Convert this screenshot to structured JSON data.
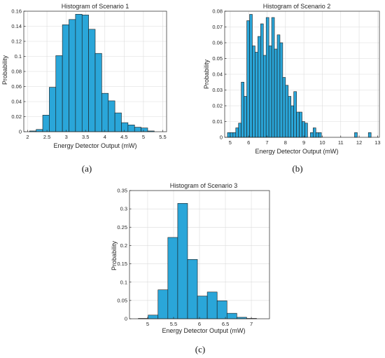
{
  "colors": {
    "bar": "#2aa6d9",
    "edge": "#1a1a1a",
    "grid": "#dcdcdc"
  },
  "chart_data": [
    {
      "type": "bar",
      "panel_label": "(a)",
      "title": "Histogram of Scenario 1",
      "xlabel": "Energy Detector Output (mW)",
      "ylabel": "Probability",
      "xlim": [
        1.9,
        5.6
      ],
      "ylim": [
        0,
        0.16
      ],
      "xticks": [
        2,
        2.5,
        3,
        3.5,
        4,
        4.5,
        5,
        5.5
      ],
      "xtick_labels": [
        "2",
        "2.5",
        "3",
        "3.5",
        "4",
        "4.5",
        "5",
        "5.5"
      ],
      "yticks": [
        0,
        0.02,
        0.04,
        0.06,
        0.08,
        0.1,
        0.12,
        0.14,
        0.16
      ],
      "ytick_labels": [
        "0",
        "0.02",
        "0.04",
        "0.06",
        "0.08",
        "0.1",
        "0.12",
        "0.14",
        "0.16"
      ],
      "grid": true,
      "bins": [
        {
          "x0": 2.05,
          "x1": 2.22,
          "value": 0.001
        },
        {
          "x0": 2.22,
          "x1": 2.39,
          "value": 0.003
        },
        {
          "x0": 2.39,
          "x1": 2.56,
          "value": 0.022
        },
        {
          "x0": 2.56,
          "x1": 2.73,
          "value": 0.059
        },
        {
          "x0": 2.73,
          "x1": 2.9,
          "value": 0.101
        },
        {
          "x0": 2.9,
          "x1": 3.07,
          "value": 0.142
        },
        {
          "x0": 3.07,
          "x1": 3.24,
          "value": 0.149
        },
        {
          "x0": 3.24,
          "x1": 3.41,
          "value": 0.156
        },
        {
          "x0": 3.41,
          "x1": 3.58,
          "value": 0.155
        },
        {
          "x0": 3.58,
          "x1": 3.75,
          "value": 0.136
        },
        {
          "x0": 3.75,
          "x1": 3.92,
          "value": 0.104
        },
        {
          "x0": 3.92,
          "x1": 4.09,
          "value": 0.051
        },
        {
          "x0": 4.09,
          "x1": 4.26,
          "value": 0.041
        },
        {
          "x0": 4.26,
          "x1": 4.43,
          "value": 0.025
        },
        {
          "x0": 4.43,
          "x1": 4.6,
          "value": 0.012
        },
        {
          "x0": 4.6,
          "x1": 4.77,
          "value": 0.009
        },
        {
          "x0": 4.77,
          "x1": 4.94,
          "value": 0.006
        },
        {
          "x0": 4.94,
          "x1": 5.11,
          "value": 0.005
        },
        {
          "x0": 5.11,
          "x1": 5.28,
          "value": 0.001
        }
      ]
    },
    {
      "type": "bar",
      "panel_label": "(b)",
      "title": "Histogram of Scenario 2",
      "xlabel": "Energy Detector Output (mW)",
      "ylabel": "Probability",
      "xlim": [
        4.7,
        13.1
      ],
      "ylim": [
        0,
        0.08
      ],
      "xticks": [
        5,
        6,
        7,
        8,
        9,
        10,
        11,
        12,
        13
      ],
      "xtick_labels": [
        "5",
        "6",
        "7",
        "8",
        "9",
        "10",
        "11",
        "12",
        "13"
      ],
      "yticks": [
        0,
        0.01,
        0.02,
        0.03,
        0.04,
        0.05,
        0.06,
        0.07,
        0.08
      ],
      "ytick_labels": [
        "0",
        "0.01",
        "0.02",
        "0.03",
        "0.04",
        "0.05",
        "0.06",
        "0.07",
        "0.08"
      ],
      "grid": true,
      "bin_start": 4.85,
      "bin_width": 0.15,
      "values": [
        0.003,
        0.003,
        0.003,
        0.006,
        0.009,
        0.035,
        0.026,
        0.074,
        0.078,
        0.058,
        0.054,
        0.064,
        0.072,
        0.052,
        0.076,
        0.058,
        0.076,
        0.056,
        0.065,
        0.06,
        0.038,
        0.033,
        0.026,
        0.02,
        0.029,
        0.016,
        0.016,
        0.01,
        0.009,
        0.0,
        0.003,
        0.006,
        0.003,
        0.003,
        0,
        0,
        0,
        0,
        0,
        0,
        0,
        0,
        0,
        0,
        0,
        0,
        0.003,
        0,
        0,
        0,
        0,
        0.003
      ]
    },
    {
      "type": "bar",
      "panel_label": "(c)",
      "title": "Histogram of Scenario 3",
      "xlabel": "Energy Detector Output (mW)",
      "ylabel": "Probability",
      "xlim": [
        4.65,
        7.35
      ],
      "ylim": [
        0,
        0.35
      ],
      "xticks": [
        5,
        5.5,
        6,
        6.5,
        7
      ],
      "xtick_labels": [
        "5",
        "5.5",
        "6",
        "6.5",
        "7"
      ],
      "yticks": [
        0,
        0.05,
        0.1,
        0.15,
        0.2,
        0.25,
        0.3,
        0.35
      ],
      "ytick_labels": [
        "0",
        "0.05",
        "0.1",
        "0.15",
        "0.2",
        "0.25",
        "0.3",
        "0.35"
      ],
      "grid": true,
      "bin_start": 4.82,
      "bin_width": 0.19,
      "values": [
        0.001,
        0.01,
        0.079,
        0.222,
        0.315,
        0.162,
        0.062,
        0.073,
        0.049,
        0.015,
        0.004,
        0.001
      ]
    }
  ]
}
